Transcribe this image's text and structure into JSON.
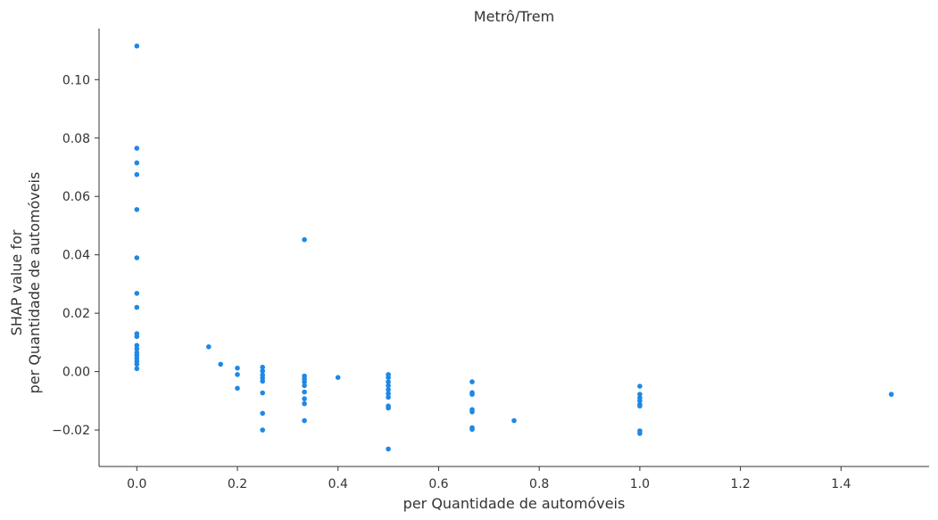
{
  "chart_data": {
    "type": "scatter",
    "title": "Metrô/Trem",
    "xlabel": "per Quantidade de automóveis",
    "ylabel_lines": [
      "SHAP value for",
      "per Quantidade de automóveis"
    ],
    "xlim": [
      -0.075,
      1.575
    ],
    "ylim": [
      -0.0325,
      0.1175
    ],
    "xticks": [
      0.0,
      0.2,
      0.4,
      0.6,
      0.8,
      1.0,
      1.2,
      1.4
    ],
    "xtick_labels": [
      "0.0",
      "0.2",
      "0.4",
      "0.6",
      "0.8",
      "1.0",
      "1.2",
      "1.4"
    ],
    "yticks": [
      -0.02,
      0.0,
      0.02,
      0.04,
      0.06,
      0.08,
      0.1
    ],
    "ytick_labels": [
      "−0.02",
      "0.00",
      "0.02",
      "0.04",
      "0.06",
      "0.08",
      "0.10"
    ],
    "grid": false,
    "marker_color": "#1E88E5",
    "points": [
      [
        0.0,
        0.1115
      ],
      [
        0.0,
        0.0765
      ],
      [
        0.0,
        0.0715
      ],
      [
        0.0,
        0.0675
      ],
      [
        0.0,
        0.0555
      ],
      [
        0.0,
        0.039
      ],
      [
        0.0,
        0.0268
      ],
      [
        0.0,
        0.022
      ],
      [
        0.0,
        0.013
      ],
      [
        0.0,
        0.012
      ],
      [
        0.0,
        0.009
      ],
      [
        0.0,
        0.0078
      ],
      [
        0.0,
        0.0065
      ],
      [
        0.0,
        0.0055
      ],
      [
        0.0,
        0.0045
      ],
      [
        0.0,
        0.0035
      ],
      [
        0.0,
        0.0025
      ],
      [
        0.0,
        0.001
      ],
      [
        0.1429,
        0.0085
      ],
      [
        0.1667,
        0.0025
      ],
      [
        0.2,
        0.0012
      ],
      [
        0.2,
        -0.001
      ],
      [
        0.2,
        -0.0057
      ],
      [
        0.25,
        0.0015
      ],
      [
        0.25,
        0.0002
      ],
      [
        0.25,
        -0.0012
      ],
      [
        0.25,
        -0.0022
      ],
      [
        0.25,
        -0.0033
      ],
      [
        0.25,
        -0.0073
      ],
      [
        0.25,
        -0.0143
      ],
      [
        0.25,
        -0.02
      ],
      [
        0.3333,
        0.0452
      ],
      [
        0.3333,
        -0.0015
      ],
      [
        0.3333,
        -0.0025
      ],
      [
        0.3333,
        -0.0035
      ],
      [
        0.3333,
        -0.0048
      ],
      [
        0.3333,
        -0.007
      ],
      [
        0.3333,
        -0.0093
      ],
      [
        0.3333,
        -0.011
      ],
      [
        0.3333,
        -0.0168
      ],
      [
        0.4,
        -0.002
      ],
      [
        0.5,
        -0.001
      ],
      [
        0.5,
        -0.002
      ],
      [
        0.5,
        -0.0035
      ],
      [
        0.5,
        -0.0048
      ],
      [
        0.5,
        -0.0062
      ],
      [
        0.5,
        -0.0075
      ],
      [
        0.5,
        -0.0088
      ],
      [
        0.5,
        -0.0118
      ],
      [
        0.5,
        -0.0125
      ],
      [
        0.5,
        -0.0265
      ],
      [
        0.6667,
        -0.0035
      ],
      [
        0.6667,
        -0.0072
      ],
      [
        0.6667,
        -0.0078
      ],
      [
        0.6667,
        -0.013
      ],
      [
        0.6667,
        -0.0138
      ],
      [
        0.6667,
        -0.0192
      ],
      [
        0.6667,
        -0.0198
      ],
      [
        0.75,
        -0.0168
      ],
      [
        1.0,
        -0.005
      ],
      [
        1.0,
        -0.0078
      ],
      [
        1.0,
        -0.009
      ],
      [
        1.0,
        -0.01
      ],
      [
        1.0,
        -0.0112
      ],
      [
        1.0,
        -0.0118
      ],
      [
        1.0,
        -0.0203
      ],
      [
        1.0,
        -0.0212
      ],
      [
        1.5,
        -0.0078
      ]
    ]
  }
}
